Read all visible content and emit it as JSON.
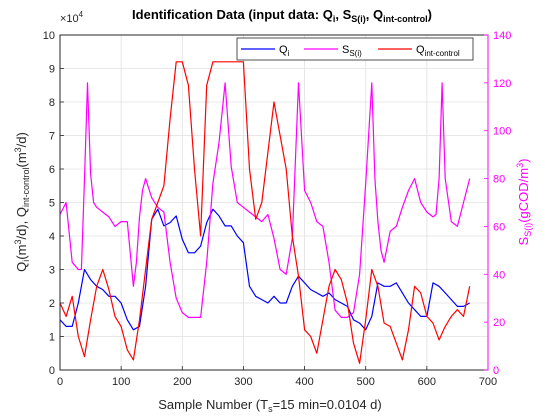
{
  "chart_data": {
    "type": "line",
    "title": {
      "prefix": "Identification Data (input data: Q",
      "sub1": "i",
      "mid1": ", S",
      "sub2": "S(i)",
      "mid2": ", Q",
      "sub3": "int-control",
      "suffix": ")"
    },
    "xlabel": {
      "prefix": "Sample Number (T",
      "sub": "s",
      "suffix": "=15 min=0.0104 d)"
    },
    "ylabel_left": {
      "p1": "Q",
      "s1": "i",
      "p2": "(m",
      "e1": "3",
      "p3": "/d), Q",
      "s2": "int-control",
      "p4": "(m",
      "e2": "3",
      "p5": "/d)"
    },
    "ylabel_right": {
      "p1": "S",
      "s1": "S(i)",
      "p2": "(gCOD/m",
      "e1": "3",
      "p3": ")"
    },
    "left_exponent": {
      "base": "×10",
      "power": "4"
    },
    "xlim": [
      0,
      700
    ],
    "ylim_left": [
      0,
      10
    ],
    "ylim_right": [
      0,
      140
    ],
    "xticks": [
      "0",
      "100",
      "200",
      "300",
      "400",
      "500",
      "600",
      "700"
    ],
    "yticks_left": [
      "0",
      "1",
      "2",
      "3",
      "4",
      "5",
      "6",
      "7",
      "8",
      "9",
      "10"
    ],
    "yticks_right": [
      "0",
      "20",
      "40",
      "60",
      "80",
      "100",
      "120",
      "140"
    ],
    "grid": true,
    "legend_position": "top-right",
    "colors": {
      "qi": "#0000ff",
      "ss": "#ff00ff",
      "qint": "#ff0000",
      "axis": "#262626",
      "grid": "#e0e0e0"
    },
    "series": [
      {
        "name": {
          "main": "Q",
          "sub": "i"
        },
        "color": "#0000ff",
        "axis": "left",
        "x": [
          0,
          10,
          20,
          30,
          40,
          50,
          60,
          70,
          80,
          90,
          100,
          110,
          120,
          130,
          140,
          150,
          160,
          170,
          180,
          190,
          200,
          210,
          220,
          230,
          240,
          250,
          260,
          270,
          280,
          290,
          300,
          310,
          320,
          330,
          340,
          350,
          360,
          370,
          380,
          390,
          400,
          410,
          420,
          430,
          440,
          450,
          460,
          470,
          480,
          490,
          500,
          510,
          520,
          530,
          540,
          550,
          560,
          570,
          580,
          590,
          600,
          610,
          620,
          630,
          640,
          650,
          660,
          670
        ],
        "y": [
          1.5,
          1.3,
          1.3,
          2.0,
          3.0,
          2.7,
          2.5,
          2.4,
          2.2,
          2.2,
          2.0,
          1.5,
          1.2,
          1.3,
          2.5,
          4.5,
          4.8,
          4.3,
          4.4,
          4.6,
          3.9,
          3.5,
          3.5,
          3.7,
          4.4,
          4.8,
          4.6,
          4.3,
          4.3,
          4.0,
          3.8,
          2.5,
          2.2,
          2.1,
          2.0,
          2.2,
          2.0,
          2.0,
          2.5,
          2.8,
          2.6,
          2.4,
          2.3,
          2.2,
          2.3,
          2.1,
          2.0,
          1.9,
          1.5,
          1.4,
          1.2,
          1.6,
          2.6,
          2.5,
          2.5,
          2.6,
          2.3,
          2.0,
          1.8,
          1.6,
          1.6,
          2.6,
          2.5,
          2.3,
          2.1,
          1.9,
          1.9,
          2.0
        ]
      },
      {
        "name": {
          "main": "S",
          "sub": "S(i)"
        },
        "color": "#ff00ff",
        "axis": "right",
        "x": [
          0,
          10,
          20,
          30,
          35,
          40,
          45,
          50,
          55,
          60,
          70,
          80,
          90,
          100,
          110,
          120,
          125,
          130,
          135,
          140,
          150,
          160,
          170,
          180,
          190,
          200,
          210,
          220,
          230,
          240,
          250,
          260,
          270,
          280,
          290,
          300,
          310,
          320,
          330,
          340,
          350,
          360,
          370,
          380,
          390,
          400,
          410,
          420,
          430,
          440,
          450,
          460,
          470,
          480,
          490,
          500,
          510,
          515,
          520,
          525,
          530,
          540,
          550,
          560,
          570,
          580,
          590,
          600,
          610,
          615,
          620,
          625,
          630,
          640,
          650,
          660,
          670
        ],
        "y": [
          65,
          70,
          45,
          42,
          42,
          80,
          120,
          82,
          70,
          68,
          66,
          64,
          60,
          62,
          62,
          35,
          45,
          64,
          75,
          80,
          72,
          68,
          66,
          45,
          30,
          24,
          22,
          22,
          22,
          45,
          78,
          95,
          120,
          85,
          70,
          68,
          66,
          64,
          62,
          65,
          55,
          42,
          40,
          55,
          120,
          75,
          70,
          62,
          60,
          45,
          25,
          22,
          22,
          24,
          40,
          78,
          120,
          80,
          62,
          50,
          45,
          58,
          60,
          68,
          75,
          80,
          70,
          66,
          64,
          65,
          80,
          120,
          80,
          62,
          60,
          70,
          80
        ]
      },
      {
        "name": {
          "main": "Q",
          "sub": "int-control"
        },
        "color": "#ff0000",
        "axis": "left",
        "x": [
          0,
          10,
          20,
          30,
          40,
          50,
          60,
          70,
          80,
          90,
          100,
          110,
          120,
          130,
          140,
          150,
          160,
          170,
          180,
          190,
          200,
          210,
          220,
          230,
          240,
          250,
          260,
          270,
          280,
          290,
          300,
          310,
          320,
          330,
          340,
          350,
          360,
          370,
          380,
          390,
          400,
          410,
          420,
          430,
          440,
          450,
          460,
          470,
          480,
          490,
          500,
          510,
          520,
          530,
          540,
          550,
          560,
          570,
          580,
          590,
          600,
          610,
          620,
          630,
          640,
          650,
          660,
          670
        ],
        "y": [
          2.0,
          1.6,
          2.2,
          1.0,
          0.4,
          1.5,
          2.5,
          3.0,
          2.4,
          1.6,
          1.3,
          0.6,
          0.3,
          1.5,
          3.0,
          4.5,
          5.0,
          5.5,
          7.5,
          9.2,
          9.2,
          8.5,
          6.0,
          4.0,
          8.5,
          9.2,
          9.2,
          9.2,
          9.2,
          9.2,
          9.2,
          6.0,
          4.5,
          5.0,
          6.5,
          8.0,
          7.0,
          6.0,
          4.0,
          2.8,
          1.2,
          1.0,
          0.5,
          1.5,
          2.5,
          3.0,
          2.7,
          2.0,
          0.8,
          0.2,
          1.5,
          3.0,
          2.5,
          1.4,
          1.3,
          0.8,
          0.3,
          1.2,
          2.5,
          2.3,
          1.6,
          1.4,
          0.9,
          1.3,
          1.6,
          1.8,
          1.6,
          2.5
        ]
      }
    ]
  }
}
